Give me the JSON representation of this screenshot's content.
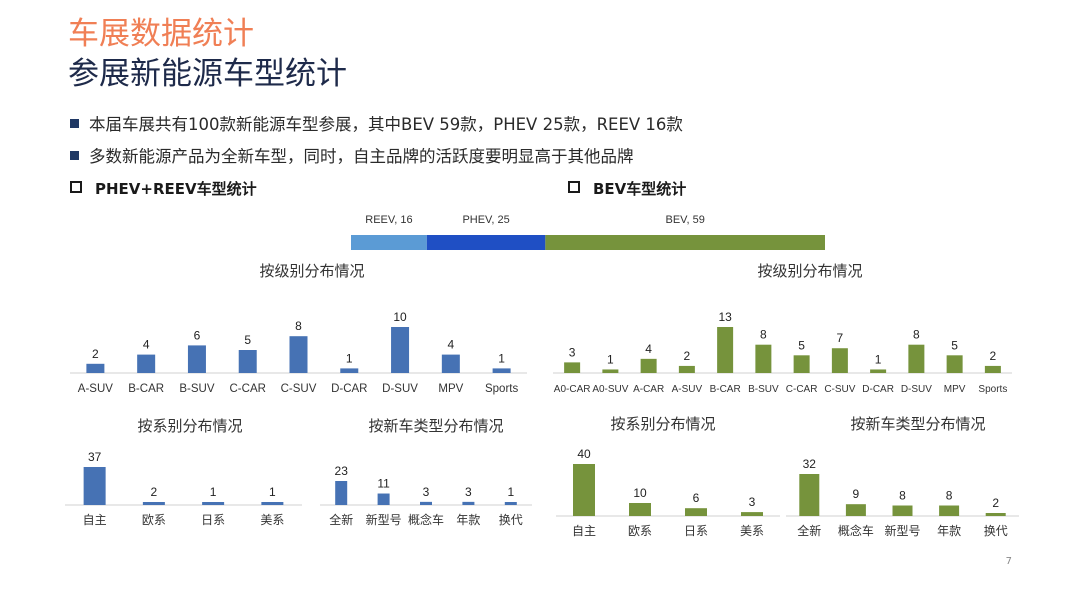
{
  "header": {
    "title": "车展数据统计",
    "subtitle": "参展新能源车型统计"
  },
  "bullets": [
    "本届车展共有100款新能源车型参展，其中BEV 59款，PHEV 25款，REEV 16款",
    "多数新能源产品为全新车型，同时，自主品牌的活跃度要明显高于其他品牌"
  ],
  "sections": {
    "left": "PHEV+REEV车型统计",
    "right": "BEV车型统计"
  },
  "colors": {
    "blue": "#4672b4",
    "green": "#76933c",
    "reev": "#5b9bd5",
    "phev": "#1f4fc4",
    "bev": "#76933c"
  },
  "stacked_bar": {
    "segments": [
      {
        "name": "REEV",
        "value": 16,
        "label": "REEV, 16"
      },
      {
        "name": "PHEV",
        "value": 25,
        "label": "PHEV, 25"
      },
      {
        "name": "BEV",
        "value": 59,
        "label": "BEV, 59"
      }
    ]
  },
  "chart_data": [
    {
      "id": "phev-level",
      "type": "bar",
      "title": "按级别分布情况",
      "series_color": "blue",
      "categories": [
        "A-SUV",
        "B-CAR",
        "B-SUV",
        "C-CAR",
        "C-SUV",
        "D-CAR",
        "D-SUV",
        "MPV",
        "Sports"
      ],
      "values": [
        2,
        4,
        6,
        5,
        8,
        1,
        10,
        4,
        1
      ]
    },
    {
      "id": "bev-level",
      "type": "bar",
      "title": "按级别分布情况",
      "series_color": "green",
      "categories": [
        "A0-CAR",
        "A0-SUV",
        "A-CAR",
        "A-SUV",
        "B-CAR",
        "B-SUV",
        "C-CAR",
        "C-SUV",
        "D-CAR",
        "D-SUV",
        "MPV",
        "Sports"
      ],
      "values": [
        3,
        1,
        4,
        2,
        13,
        8,
        5,
        7,
        1,
        8,
        5,
        2
      ]
    },
    {
      "id": "phev-brand",
      "type": "bar",
      "title": "按系别分布情况",
      "series_color": "blue",
      "categories": [
        "自主",
        "欧系",
        "日系",
        "美系"
      ],
      "values": [
        37,
        2,
        1,
        1
      ]
    },
    {
      "id": "phev-newtype",
      "type": "bar",
      "title": "按新车类型分布情况",
      "series_color": "blue",
      "categories": [
        "全新",
        "新型号",
        "概念车",
        "年款",
        "换代"
      ],
      "values": [
        23,
        11,
        3,
        3,
        1
      ]
    },
    {
      "id": "bev-brand",
      "type": "bar",
      "title": "按系别分布情况",
      "series_color": "green",
      "categories": [
        "自主",
        "欧系",
        "日系",
        "美系"
      ],
      "values": [
        40,
        10,
        6,
        3
      ]
    },
    {
      "id": "bev-newtype",
      "type": "bar",
      "title": "按新车类型分布情况",
      "series_color": "green",
      "categories": [
        "全新",
        "概念车",
        "新型号",
        "年款",
        "换代"
      ],
      "values": [
        32,
        9,
        8,
        8,
        2
      ]
    }
  ],
  "footer": {
    "page_number": "7"
  }
}
